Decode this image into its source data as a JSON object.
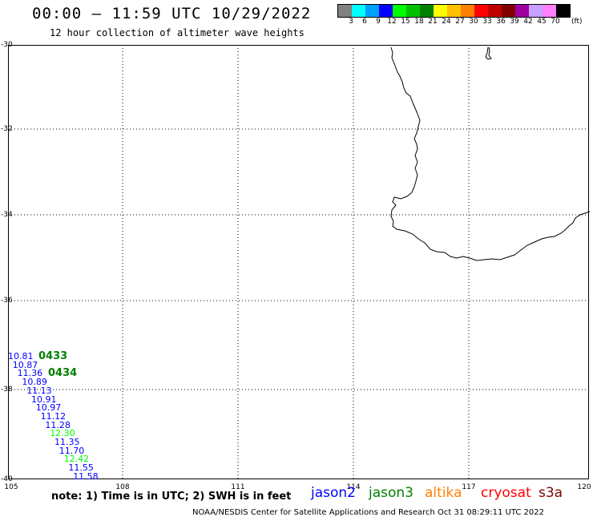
{
  "header": {
    "title": "00:00 – 11:59 UTC 10/29/2022",
    "subtitle": "12 hour collection of altimeter wave heights"
  },
  "colorbar": {
    "colors": [
      "#808080",
      "#00ffff",
      "#00a0ff",
      "#0000ff",
      "#00ff00",
      "#00c000",
      "#008000",
      "#ffff00",
      "#ffc000",
      "#ff8000",
      "#ff0000",
      "#c00000",
      "#800000",
      "#a000a0",
      "#c8a0ff",
      "#ff80ff",
      "#000000"
    ],
    "labels": [
      "3",
      "6",
      "9",
      "12",
      "15",
      "18",
      "21",
      "24",
      "27",
      "30",
      "33",
      "36",
      "39",
      "42",
      "45",
      "70"
    ],
    "unit": "(ft)"
  },
  "map": {
    "lat_labels": [
      "-30",
      "-32",
      "-34",
      "-36",
      "-38",
      "-40"
    ],
    "lon_labels": [
      "105",
      "108",
      "111",
      "114",
      "117",
      "120"
    ],
    "grid_color": "#000000",
    "coast_color": "#000000"
  },
  "observations": [
    {
      "value": "10.81",
      "color": "#0000ff"
    },
    {
      "value": "10.87",
      "color": "#0000ff"
    },
    {
      "value": "11.36",
      "color": "#0000ff"
    },
    {
      "value": "10.89",
      "color": "#0000ff"
    },
    {
      "value": "11.13",
      "color": "#0000ff"
    },
    {
      "value": "10.91",
      "color": "#0000ff"
    },
    {
      "value": "10.97",
      "color": "#0000ff"
    },
    {
      "value": "11.12",
      "color": "#0000ff"
    },
    {
      "value": "11.28",
      "color": "#0000ff"
    },
    {
      "value": "12.30",
      "color": "#00ff00"
    },
    {
      "value": "11.35",
      "color": "#0000ff"
    },
    {
      "value": "11.70",
      "color": "#0000ff"
    },
    {
      "value": "12.42",
      "color": "#00ff00"
    },
    {
      "value": "11.55",
      "color": "#0000ff"
    },
    {
      "value": "11.58",
      "color": "#0000ff"
    }
  ],
  "pass_times": [
    "0433",
    "0434"
  ],
  "footer": {
    "note": "note: 1) Time is in UTC; 2) SWH is in feet",
    "legend": [
      {
        "name": "jason2",
        "color": "#0000ff"
      },
      {
        "name": "jason3",
        "color": "#008000"
      },
      {
        "name": "altika",
        "color": "#ff8000"
      },
      {
        "name": "cryosat",
        "color": "#ff0000"
      },
      {
        "name": "s3a",
        "color": "#800000"
      }
    ],
    "credit": "NOAA/NESDIS Center for Satellite Applications and Research    Oct 31 08:29:11 UTC 2022"
  }
}
